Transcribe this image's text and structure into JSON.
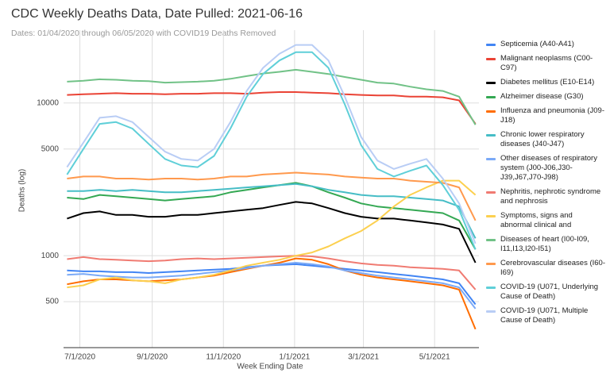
{
  "chart_data": {
    "type": "line",
    "title": "CDC Weekly Deaths Data, Date Pulled: 2021-06-16",
    "subtitle": "Dates: 01/04/2020 through 06/05/2020 with COVID19 Deaths Removed",
    "x_label": "Week Ending Date",
    "y_label": "Deaths (log)",
    "log_scale": true,
    "grid": true,
    "legend": "right",
    "x": [
      "2020-06-20",
      "2020-07-04",
      "2020-07-18",
      "2020-08-01",
      "2020-08-15",
      "2020-08-29",
      "2020-09-12",
      "2020-09-26",
      "2020-10-10",
      "2020-10-24",
      "2020-11-07",
      "2020-11-21",
      "2020-12-05",
      "2020-12-19",
      "2021-01-02",
      "2021-01-16",
      "2021-01-30",
      "2021-02-13",
      "2021-02-27",
      "2021-03-13",
      "2021-03-27",
      "2021-04-10",
      "2021-04-24",
      "2021-05-08",
      "2021-05-22",
      "2021-06-05"
    ],
    "xlim": [
      "2020-06-17",
      "2021-06-08"
    ],
    "xticks": [
      {
        "value": "2020-07-01",
        "label": "7/1/2020"
      },
      {
        "value": "2020-09-01",
        "label": "9/1/2020"
      },
      {
        "value": "2020-11-01",
        "label": "11/1/2020"
      },
      {
        "value": "2021-01-01",
        "label": "1/1/2021"
      },
      {
        "value": "2021-03-01",
        "label": "3/1/2021"
      },
      {
        "value": "2021-05-01",
        "label": "5/1/2021"
      }
    ],
    "ylim": [
      250,
      30000
    ],
    "yticks": [
      500,
      1000,
      5000,
      10000
    ],
    "series": [
      {
        "name": "Septicemia (A40-A41)",
        "color": "#4285f4",
        "values": [
          800,
          790,
          790,
          780,
          780,
          770,
          780,
          790,
          800,
          810,
          820,
          840,
          860,
          870,
          880,
          860,
          840,
          820,
          800,
          780,
          760,
          740,
          720,
          700,
          660,
          480
        ]
      },
      {
        "name": "Malignant neoplasms (C00-C97)",
        "color": "#ea4335",
        "values": [
          11300,
          11400,
          11500,
          11600,
          11500,
          11500,
          11400,
          11500,
          11500,
          11600,
          11600,
          11500,
          11700,
          11800,
          11800,
          11700,
          11600,
          11400,
          11300,
          11200,
          11200,
          11000,
          11000,
          10900,
          10400,
          7300
        ]
      },
      {
        "name": "Diabetes mellitus (E10-E14)",
        "color": "#000000",
        "values": [
          1750,
          1900,
          1950,
          1850,
          1850,
          1800,
          1800,
          1850,
          1850,
          1900,
          1950,
          2000,
          2050,
          2150,
          2250,
          2200,
          2050,
          1900,
          1800,
          1750,
          1750,
          1700,
          1650,
          1600,
          1500,
          900
        ]
      },
      {
        "name": "Alzheimer disease (G30)",
        "color": "#34a853",
        "values": [
          2400,
          2350,
          2500,
          2450,
          2400,
          2350,
          2300,
          2350,
          2400,
          2450,
          2600,
          2700,
          2800,
          2900,
          3000,
          2850,
          2600,
          2400,
          2200,
          2100,
          2050,
          2000,
          1950,
          1900,
          1700,
          1100
        ]
      },
      {
        "name": "Influenza and pneumonia (J09-J18)",
        "color": "#ff6d01",
        "values": [
          650,
          680,
          700,
          700,
          690,
          680,
          690,
          700,
          720,
          740,
          780,
          820,
          860,
          900,
          960,
          940,
          880,
          800,
          750,
          720,
          700,
          680,
          660,
          640,
          600,
          330
        ]
      },
      {
        "name": "Chronic lower respiratory diseases (J40-J47)",
        "color": "#46bdc6",
        "values": [
          2650,
          2650,
          2700,
          2650,
          2700,
          2650,
          2600,
          2600,
          2650,
          2700,
          2750,
          2800,
          2850,
          2900,
          2950,
          2850,
          2700,
          2600,
          2500,
          2450,
          2450,
          2400,
          2350,
          2300,
          2100,
          1300
        ]
      },
      {
        "name": "Other diseases of respiratory system (J00-J06,J30-J39,J67,J70-J98)",
        "color": "#7baaf7",
        "values": [
          750,
          760,
          740,
          730,
          720,
          720,
          730,
          740,
          760,
          780,
          800,
          830,
          860,
          880,
          900,
          880,
          850,
          800,
          770,
          740,
          720,
          700,
          680,
          660,
          620,
          450
        ]
      },
      {
        "name": "Nephritis, nephrotic syndrome and nephrosis",
        "color": "#f07b72",
        "values": [
          950,
          980,
          950,
          940,
          930,
          920,
          930,
          950,
          960,
          950,
          960,
          970,
          980,
          990,
          1000,
          990,
          960,
          920,
          890,
          870,
          860,
          840,
          830,
          820,
          800,
          600
        ]
      },
      {
        "name": "Symptoms, signs and abnormal clinical and",
        "color": "#fcd04f",
        "values": [
          620,
          640,
          700,
          720,
          690,
          680,
          660,
          700,
          720,
          750,
          800,
          860,
          900,
          940,
          1000,
          1050,
          1150,
          1300,
          1450,
          1700,
          2100,
          2500,
          2800,
          3100,
          3100,
          2500
        ]
      },
      {
        "name": "Diseases of heart (I00-I09, I11,I13,I20-I51)",
        "color": "#71c287",
        "values": [
          13800,
          14000,
          14300,
          14200,
          14000,
          13900,
          13600,
          13700,
          13800,
          14000,
          14400,
          15000,
          15600,
          16000,
          16500,
          16000,
          15500,
          14800,
          14200,
          13600,
          13400,
          12800,
          12300,
          12000,
          11000,
          7200
        ]
      },
      {
        "name": "Cerebrovascular diseases (I60-I69)",
        "color": "#ff994d",
        "values": [
          3200,
          3300,
          3300,
          3200,
          3200,
          3150,
          3200,
          3200,
          3150,
          3200,
          3300,
          3300,
          3400,
          3450,
          3500,
          3450,
          3400,
          3300,
          3250,
          3200,
          3200,
          3100,
          3050,
          3000,
          2800,
          1700
        ]
      },
      {
        "name": "COVID-19 (U071, Underlying Cause of Death)",
        "color": "#5fcfd8",
        "values": [
          3400,
          5000,
          7300,
          7500,
          6800,
          5400,
          4300,
          3900,
          3800,
          4500,
          6800,
          11000,
          15500,
          19000,
          21500,
          21500,
          17000,
          9800,
          5300,
          3700,
          3300,
          3600,
          3900,
          2900,
          2000,
          1100
        ]
      },
      {
        "name": "COVID-19 (U071, Multiple Cause of Death)",
        "color": "#b9cdf5",
        "values": [
          3800,
          5500,
          8000,
          8200,
          7500,
          6000,
          4800,
          4300,
          4200,
          5000,
          7500,
          12000,
          17000,
          21000,
          24000,
          24000,
          19000,
          11000,
          6000,
          4200,
          3700,
          4000,
          4300,
          3200,
          2200,
          1200
        ]
      }
    ]
  }
}
